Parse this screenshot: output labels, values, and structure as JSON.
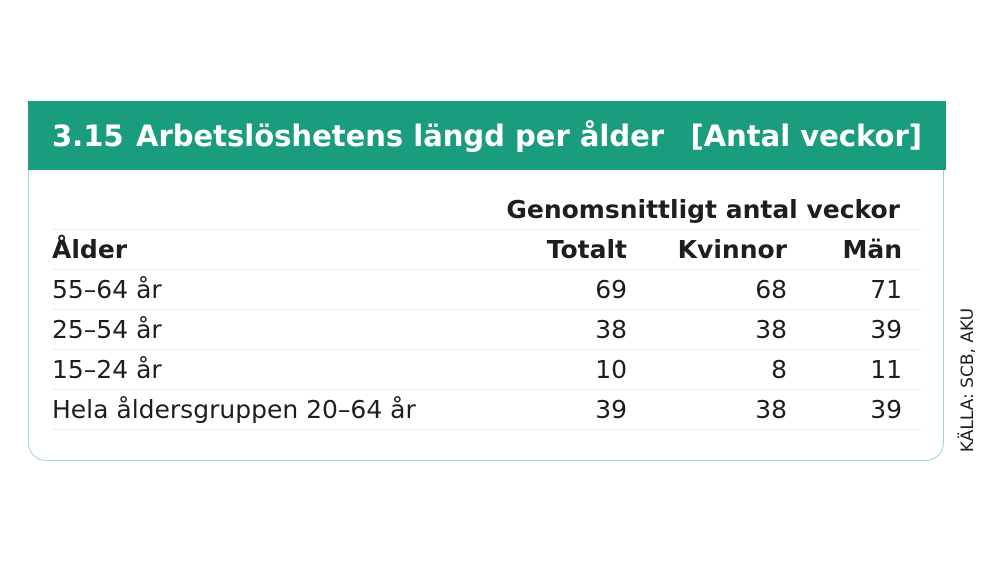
{
  "header": {
    "number": "3.15",
    "title": "Arbetslöshetens längd per ålder",
    "unit": "[Antal veckor]"
  },
  "table": {
    "group_header": "Genomsnittligt antal veckor",
    "columns": [
      "Ålder",
      "Totalt",
      "Kvinnor",
      "Män"
    ],
    "rows": [
      [
        "55–64 år",
        69,
        68,
        71
      ],
      [
        "25–54 år",
        38,
        38,
        39
      ],
      [
        "15–24 år",
        10,
        8,
        11
      ],
      [
        "Hela åldersgruppen 20–64 år",
        39,
        38,
        39
      ]
    ]
  },
  "source": "KÄLLA: SCB, AKU"
}
